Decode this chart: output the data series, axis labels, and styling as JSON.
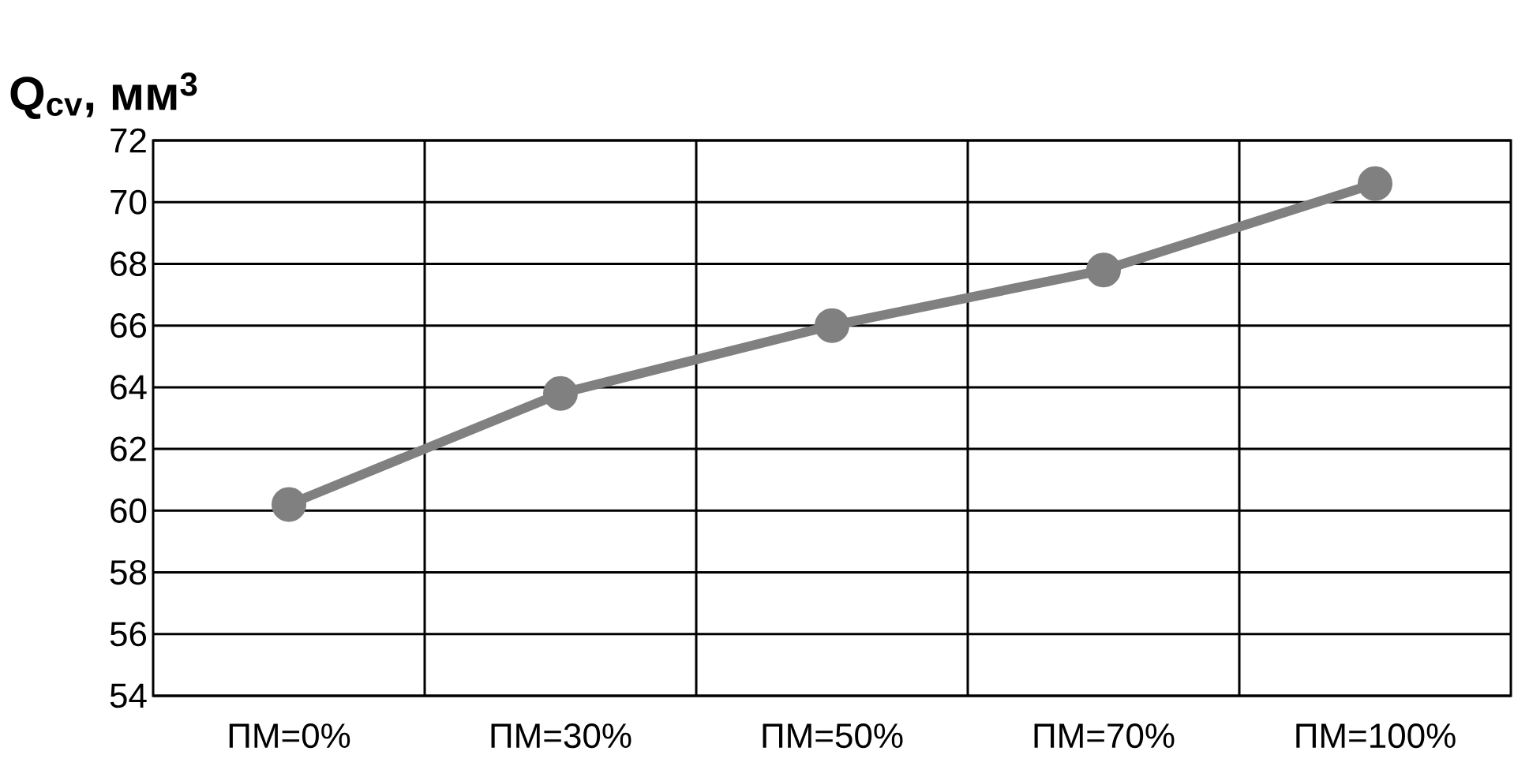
{
  "chart_data": {
    "type": "line",
    "ylabel": "Q$_{cv}$, мм$^{3}$",
    "categories": [
      "ПМ=0%",
      "ПМ=30%",
      "ПМ=50%",
      "ПМ=70%",
      "ПМ=100%"
    ],
    "series": [
      {
        "color": "#808080",
        "values": [
          60.2,
          63.8,
          66.0,
          67.8,
          70.6
        ]
      }
    ],
    "ylim": [
      54,
      72
    ],
    "yticks": [
      54,
      56,
      58,
      60,
      62,
      64,
      66,
      68,
      70,
      72
    ],
    "grid": true,
    "marker": "circle",
    "line_style": "solid"
  }
}
